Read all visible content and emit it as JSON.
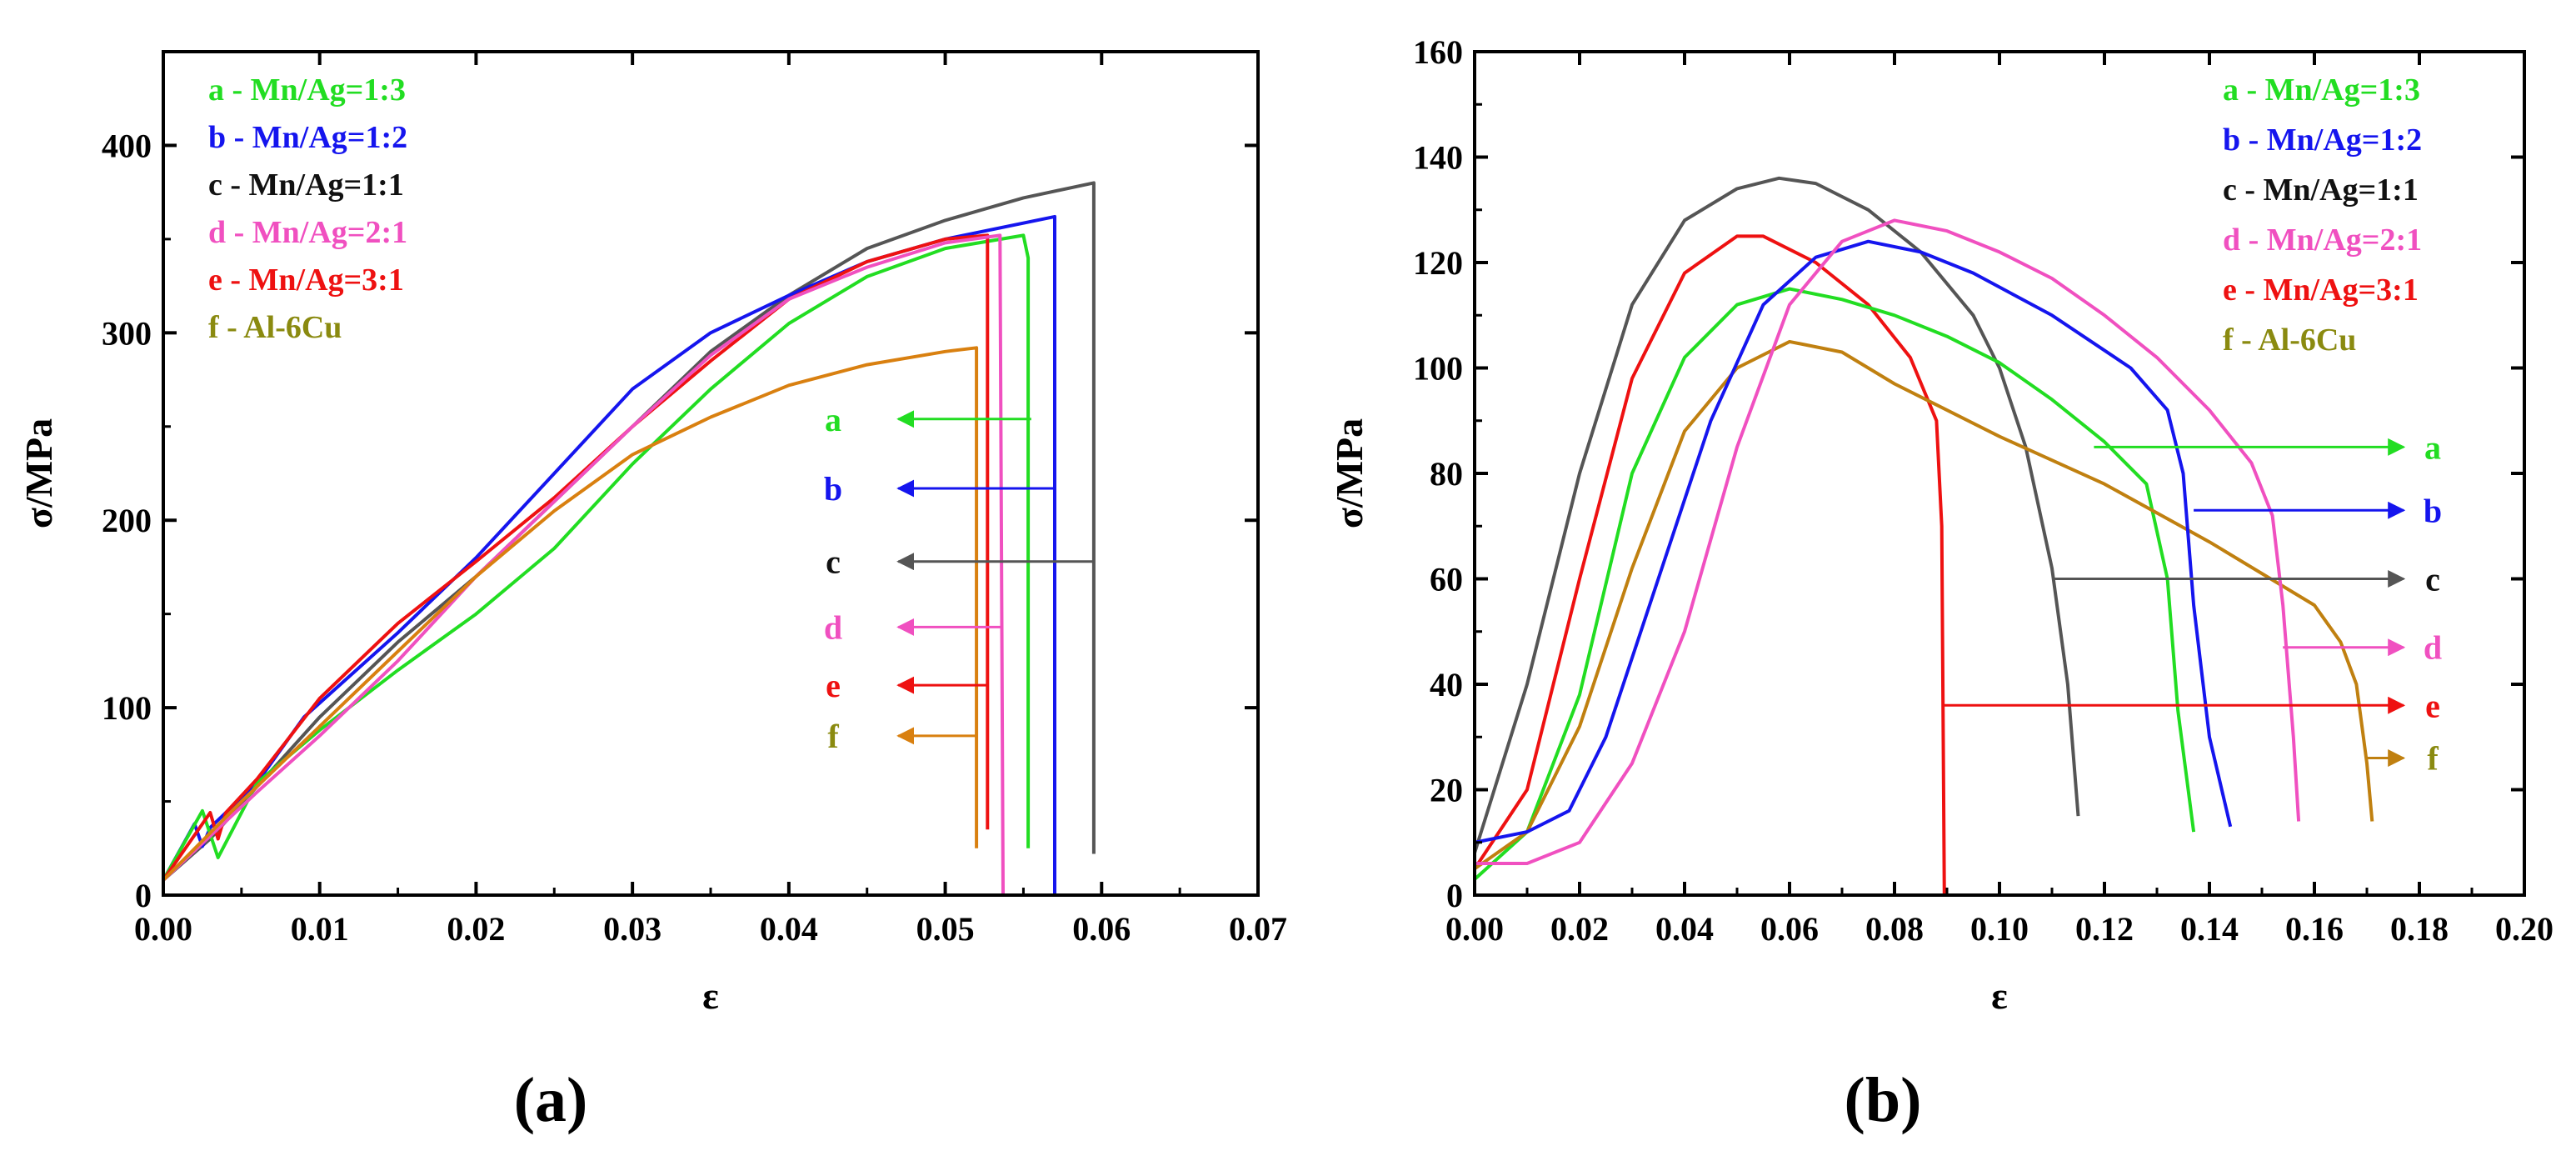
{
  "chart_data": [
    {
      "type": "line",
      "panel_label": "(a)",
      "xlabel": "ε",
      "ylabel": "σ/MPa",
      "xlim": [
        0,
        0.07
      ],
      "ylim": [
        0,
        450
      ],
      "xticks": [
        0.0,
        0.01,
        0.02,
        0.03,
        0.04,
        0.05,
        0.06,
        0.07
      ],
      "xtick_labels": [
        "0.00",
        "0.01",
        "0.02",
        "0.03",
        "0.04",
        "0.05",
        "0.06",
        "0.07"
      ],
      "yticks": [
        0,
        100,
        200,
        300,
        400
      ],
      "ytick_labels": [
        "0",
        "100",
        "200",
        "300",
        "400"
      ],
      "legend": [
        {
          "text": "a - Mn/Ag=1:3",
          "color": "#22dd22"
        },
        {
          "text": "b - Mn/Ag=1:2",
          "color": "#1515ee"
        },
        {
          "text": "c - Mn/Ag=1:1",
          "color": "#111111"
        },
        {
          "text": "d - Mn/Ag=2:1",
          "color": "#f050c0"
        },
        {
          "text": "e - Mn/Ag=3:1",
          "color": "#ee1111"
        },
        {
          "text": "f - Al-6Cu",
          "color": "#8a8a10"
        }
      ],
      "series": [
        {
          "name": "c",
          "color": "#555555",
          "label_color": "#111111",
          "points": [
            [
              0,
              8
            ],
            [
              0.003,
              30
            ],
            [
              0.006,
              58
            ],
            [
              0.01,
              95
            ],
            [
              0.015,
              135
            ],
            [
              0.02,
              170
            ],
            [
              0.025,
              210
            ],
            [
              0.03,
              250
            ],
            [
              0.035,
              290
            ],
            [
              0.04,
              320
            ],
            [
              0.045,
              345
            ],
            [
              0.05,
              360
            ],
            [
              0.055,
              372
            ],
            [
              0.0595,
              380
            ],
            [
              0.0595,
              22
            ]
          ],
          "tag": "c",
          "tag_y": 178,
          "arrow_x0": 0.0595,
          "arrow_x1": 0.047
        },
        {
          "name": "b",
          "color": "#1515ee",
          "label_color": "#1515ee",
          "points": [
            [
              0,
              8
            ],
            [
              0.002,
              38
            ],
            [
              0.0025,
              26
            ],
            [
              0.003,
              36
            ],
            [
              0.006,
              60
            ],
            [
              0.009,
              95
            ],
            [
              0.015,
              140
            ],
            [
              0.02,
              180
            ],
            [
              0.025,
              225
            ],
            [
              0.03,
              270
            ],
            [
              0.035,
              300
            ],
            [
              0.04,
              320
            ],
            [
              0.045,
              338
            ],
            [
              0.05,
              350
            ],
            [
              0.057,
              362
            ],
            [
              0.057,
              0
            ]
          ],
          "tag": "b",
          "tag_y": 217,
          "arrow_x0": 0.057,
          "arrow_x1": 0.047
        },
        {
          "name": "a",
          "color": "#22dd22",
          "label_color": "#22dd22",
          "points": [
            [
              0,
              8
            ],
            [
              0.0025,
              45
            ],
            [
              0.0035,
              20
            ],
            [
              0.006,
              60
            ],
            [
              0.01,
              88
            ],
            [
              0.015,
              120
            ],
            [
              0.02,
              150
            ],
            [
              0.025,
              185
            ],
            [
              0.03,
              230
            ],
            [
              0.035,
              270
            ],
            [
              0.04,
              305
            ],
            [
              0.045,
              330
            ],
            [
              0.05,
              345
            ],
            [
              0.055,
              352
            ],
            [
              0.0553,
              340
            ],
            [
              0.0553,
              25
            ]
          ],
          "tag": "a",
          "tag_y": 254,
          "arrow_x0": 0.0555,
          "arrow_x1": 0.047
        },
        {
          "name": "e",
          "color": "#ee1111",
          "label_color": "#ee1111",
          "points": [
            [
              0,
              8
            ],
            [
              0.003,
              44
            ],
            [
              0.0035,
              30
            ],
            [
              0.004,
              44
            ],
            [
              0.006,
              62
            ],
            [
              0.01,
              105
            ],
            [
              0.015,
              145
            ],
            [
              0.02,
              178
            ],
            [
              0.025,
              212
            ],
            [
              0.03,
              250
            ],
            [
              0.035,
              285
            ],
            [
              0.04,
              318
            ],
            [
              0.045,
              338
            ],
            [
              0.05,
              350
            ],
            [
              0.0527,
              352
            ],
            [
              0.0527,
              35
            ]
          ],
          "tag": "e",
          "tag_y": 112,
          "arrow_x0": 0.0527,
          "arrow_x1": 0.047
        },
        {
          "name": "d",
          "color": "#f050c0",
          "label_color": "#f050c0",
          "points": [
            [
              0,
              8
            ],
            [
              0.006,
              55
            ],
            [
              0.01,
              85
            ],
            [
              0.015,
              125
            ],
            [
              0.02,
              170
            ],
            [
              0.025,
              210
            ],
            [
              0.03,
              250
            ],
            [
              0.035,
              288
            ],
            [
              0.04,
              318
            ],
            [
              0.045,
              335
            ],
            [
              0.05,
              348
            ],
            [
              0.0535,
              352
            ],
            [
              0.0537,
              0
            ]
          ],
          "tag": "d",
          "tag_y": 143,
          "arrow_x0": 0.0537,
          "arrow_x1": 0.047
        },
        {
          "name": "f",
          "color": "#d98010",
          "label_color": "#8a8a10",
          "points": [
            [
              0,
              8
            ],
            [
              0.005,
              50
            ],
            [
              0.01,
              90
            ],
            [
              0.015,
              130
            ],
            [
              0.02,
              170
            ],
            [
              0.025,
              205
            ],
            [
              0.03,
              235
            ],
            [
              0.035,
              255
            ],
            [
              0.04,
              272
            ],
            [
              0.045,
              283
            ],
            [
              0.05,
              290
            ],
            [
              0.052,
              292
            ],
            [
              0.052,
              25
            ]
          ],
          "tag": "f",
          "tag_y": 85,
          "arrow_x0": 0.052,
          "arrow_x1": 0.047
        }
      ]
    },
    {
      "type": "line",
      "panel_label": "(b)",
      "xlabel": "ε",
      "ylabel": "σ/MPa",
      "xlim": [
        0,
        0.2
      ],
      "ylim": [
        0,
        160
      ],
      "xticks": [
        0.0,
        0.02,
        0.04,
        0.06,
        0.08,
        0.1,
        0.12,
        0.14,
        0.16,
        0.18,
        0.2
      ],
      "xtick_labels": [
        "0.00",
        "0.02",
        "0.04",
        "0.06",
        "0.08",
        "0.10",
        "0.12",
        "0.14",
        "0.16",
        "0.18",
        "0.20"
      ],
      "yticks": [
        0,
        20,
        40,
        60,
        80,
        100,
        120,
        140,
        160
      ],
      "ytick_labels": [
        "0",
        "20",
        "40",
        "60",
        "80",
        "100",
        "120",
        "140",
        "160"
      ],
      "legend": [
        {
          "text": "a - Mn/Ag=1:3",
          "color": "#22dd22"
        },
        {
          "text": "b - Mn/Ag=1:2",
          "color": "#1515ee"
        },
        {
          "text": "c - Mn/Ag=1:1",
          "color": "#111111"
        },
        {
          "text": "d - Mn/Ag=2:1",
          "color": "#f050c0"
        },
        {
          "text": "e - Mn/Ag=3:1",
          "color": "#ee1111"
        },
        {
          "text": "f - Al-6Cu",
          "color": "#8a8a10"
        }
      ],
      "series": [
        {
          "name": "c",
          "color": "#555555",
          "label_color": "#111111",
          "points": [
            [
              0,
              8
            ],
            [
              0.01,
              40
            ],
            [
              0.02,
              80
            ],
            [
              0.03,
              112
            ],
            [
              0.04,
              128
            ],
            [
              0.05,
              134
            ],
            [
              0.058,
              136
            ],
            [
              0.065,
              135
            ],
            [
              0.075,
              130
            ],
            [
              0.085,
              122
            ],
            [
              0.095,
              110
            ],
            [
              0.1,
              100
            ],
            [
              0.105,
              85
            ],
            [
              0.11,
              62
            ],
            [
              0.113,
              40
            ],
            [
              0.115,
              15
            ]
          ],
          "tag": "c",
          "tag_y": 60,
          "arrow_x0": 0.11,
          "arrow_x1": 0.177
        },
        {
          "name": "e",
          "color": "#ee1111",
          "label_color": "#ee1111",
          "points": [
            [
              0,
              5
            ],
            [
              0.01,
              20
            ],
            [
              0.02,
              60
            ],
            [
              0.03,
              98
            ],
            [
              0.04,
              118
            ],
            [
              0.05,
              125
            ],
            [
              0.055,
              125
            ],
            [
              0.065,
              120
            ],
            [
              0.075,
              112
            ],
            [
              0.083,
              102
            ],
            [
              0.088,
              90
            ],
            [
              0.089,
              70
            ],
            [
              0.0895,
              0
            ]
          ],
          "tag": "e",
          "tag_y": 36,
          "arrow_x0": 0.0895,
          "arrow_x1": 0.177
        },
        {
          "name": "a",
          "color": "#22dd22",
          "label_color": "#22dd22",
          "points": [
            [
              0,
              3
            ],
            [
              0.01,
              12
            ],
            [
              0.02,
              38
            ],
            [
              0.03,
              80
            ],
            [
              0.04,
              102
            ],
            [
              0.05,
              112
            ],
            [
              0.06,
              115
            ],
            [
              0.07,
              113
            ],
            [
              0.08,
              110
            ],
            [
              0.09,
              106
            ],
            [
              0.1,
              101
            ],
            [
              0.11,
              94
            ],
            [
              0.12,
              86
            ],
            [
              0.128,
              78
            ],
            [
              0.132,
              60
            ],
            [
              0.134,
              35
            ],
            [
              0.137,
              12
            ]
          ],
          "tag": "a",
          "tag_y": 85,
          "arrow_x0": 0.118,
          "arrow_x1": 0.177
        },
        {
          "name": "f",
          "color": "#c08010",
          "label_color": "#8a8a10",
          "points": [
            [
              0,
              5
            ],
            [
              0.01,
              12
            ],
            [
              0.02,
              32
            ],
            [
              0.03,
              62
            ],
            [
              0.04,
              88
            ],
            [
              0.05,
              100
            ],
            [
              0.06,
              105
            ],
            [
              0.07,
              103
            ],
            [
              0.08,
              97
            ],
            [
              0.09,
              92
            ],
            [
              0.1,
              87
            ],
            [
              0.12,
              78
            ],
            [
              0.14,
              67
            ],
            [
              0.16,
              55
            ],
            [
              0.165,
              48
            ],
            [
              0.168,
              40
            ],
            [
              0.17,
              25
            ],
            [
              0.171,
              14
            ]
          ],
          "tag": "f",
          "tag_y": 26,
          "arrow_x0": 0.17,
          "arrow_x1": 0.177
        },
        {
          "name": "b",
          "color": "#1515ee",
          "label_color": "#1515ee",
          "points": [
            [
              0,
              10
            ],
            [
              0.01,
              12
            ],
            [
              0.018,
              16
            ],
            [
              0.025,
              30
            ],
            [
              0.035,
              60
            ],
            [
              0.045,
              90
            ],
            [
              0.055,
              112
            ],
            [
              0.065,
              121
            ],
            [
              0.075,
              124
            ],
            [
              0.085,
              122
            ],
            [
              0.095,
              118
            ],
            [
              0.11,
              110
            ],
            [
              0.125,
              100
            ],
            [
              0.132,
              92
            ],
            [
              0.135,
              80
            ],
            [
              0.137,
              55
            ],
            [
              0.14,
              30
            ],
            [
              0.144,
              13
            ]
          ],
          "tag": "b",
          "tag_y": 73,
          "arrow_x0": 0.137,
          "arrow_x1": 0.177
        },
        {
          "name": "d",
          "color": "#f050c0",
          "label_color": "#f050c0",
          "points": [
            [
              0,
              6
            ],
            [
              0.01,
              6
            ],
            [
              0.02,
              10
            ],
            [
              0.03,
              25
            ],
            [
              0.04,
              50
            ],
            [
              0.05,
              85
            ],
            [
              0.06,
              112
            ],
            [
              0.07,
              124
            ],
            [
              0.08,
              128
            ],
            [
              0.09,
              126
            ],
            [
              0.1,
              122
            ],
            [
              0.11,
              117
            ],
            [
              0.12,
              110
            ],
            [
              0.13,
              102
            ],
            [
              0.14,
              92
            ],
            [
              0.148,
              82
            ],
            [
              0.152,
              72
            ],
            [
              0.154,
              55
            ],
            [
              0.156,
              30
            ],
            [
              0.157,
              14
            ]
          ],
          "tag": "d",
          "tag_y": 47,
          "arrow_x0": 0.154,
          "arrow_x1": 0.177
        }
      ]
    }
  ]
}
